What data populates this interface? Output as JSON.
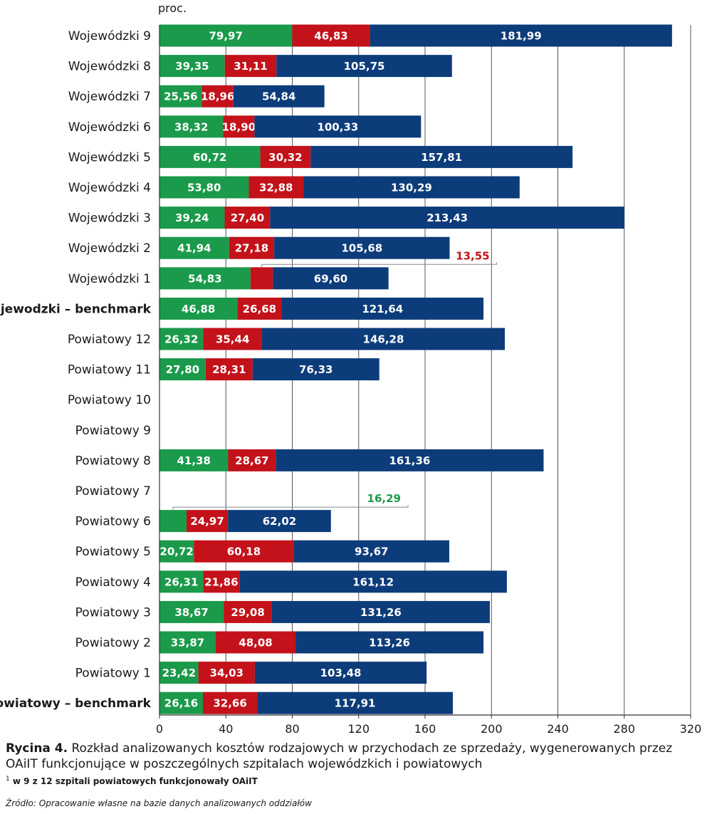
{
  "chart_data": {
    "type": "bar",
    "orientation": "horizontal",
    "stacked": true,
    "unit_label": "proc.",
    "xlim": [
      0,
      320
    ],
    "xticks": [
      0,
      40,
      80,
      120,
      160,
      200,
      240,
      280,
      320
    ],
    "xtick_labels": [
      "0",
      "40",
      "80",
      "120",
      "160",
      "200",
      "240",
      "280",
      "320"
    ],
    "grid": "vertical",
    "bold_categories": [
      "Wojewodzki – benchmark",
      "Powiatowy – benchmark"
    ],
    "categories": [
      "Wojewódzki 9",
      "Wojewódzki 8",
      "Wojewódzki 7",
      "Wojewódzki 6",
      "Wojewódzki 5",
      "Wojewódzki 4",
      "Wojewódzki 3",
      "Wojewódzki 2",
      "Wojewódzki 1",
      "Wojewodzki – benchmark",
      "Powiatowy 12",
      "Powiatowy 11",
      "Powiatowy 10",
      "Powiatowy 9",
      "Powiatowy 8",
      "Powiatowy 7",
      "Powiatowy 6",
      "Powiatowy 5",
      "Powiatowy 4",
      "Powiatowy 3",
      "Powiatowy 2",
      "Powiatowy 1",
      "Powiatowy – benchmark"
    ],
    "series": [
      {
        "color": "#1a9a4a",
        "values": [
          79.97,
          39.35,
          25.56,
          38.32,
          60.72,
          53.8,
          39.24,
          41.94,
          54.83,
          46.88,
          26.32,
          27.8,
          null,
          null,
          41.38,
          null,
          16.29,
          20.72,
          26.31,
          38.67,
          33.87,
          23.42,
          26.16
        ],
        "labels": [
          "79,97",
          "39,35",
          "25,56",
          "38,32",
          "60,72",
          "53,80",
          "39,24",
          "41,94",
          "54,83",
          "46,88",
          "26,32",
          "27,80",
          "",
          "",
          "41,38",
          "",
          "",
          "20,72",
          "26,31",
          "38,67",
          "33,87",
          "23,42",
          "26,16"
        ]
      },
      {
        "color": "#c3121a",
        "values": [
          46.83,
          31.11,
          18.96,
          18.9,
          30.32,
          32.88,
          27.4,
          27.18,
          13.55,
          26.68,
          35.44,
          28.31,
          null,
          null,
          28.67,
          null,
          24.97,
          60.18,
          21.86,
          29.08,
          48.08,
          34.03,
          32.66
        ],
        "labels": [
          "46,83",
          "31,11",
          "18,96",
          "18,90",
          "30,32",
          "32,88",
          "27,40",
          "27,18",
          "",
          "26,68",
          "35,44",
          "28,31",
          "",
          "",
          "28,67",
          "",
          "24,97",
          "60,18",
          "21,86",
          "29,08",
          "48,08",
          "34,03",
          "32,66"
        ]
      },
      {
        "color": "#0d3c7a",
        "values": [
          181.99,
          105.75,
          54.84,
          100.33,
          157.81,
          130.29,
          213.43,
          105.68,
          69.6,
          121.64,
          146.28,
          76.33,
          null,
          null,
          161.36,
          null,
          62.02,
          93.67,
          161.12,
          131.26,
          113.26,
          103.48,
          117.91
        ],
        "labels": [
          "181,99",
          "105,75",
          "54,84",
          "100,33",
          "157,81",
          "130,29",
          "213,43",
          "105,68",
          "69,60",
          "121,64",
          "146,28",
          "76,33",
          "",
          "",
          "161,36",
          "",
          "62,02",
          "93,67",
          "161,12",
          "131,26",
          "113,26",
          "103,48",
          "117,91"
        ]
      }
    ],
    "callouts": [
      {
        "category_index": 8,
        "series_index": 1,
        "text": "13,55",
        "color": "#c3121a"
      },
      {
        "category_index": 16,
        "series_index": 0,
        "text": "16,29",
        "color": "#1a9a4a"
      }
    ]
  },
  "caption": {
    "label": "Rycina 4.",
    "text": " Rozkład analizowanych kosztów rodzajowych w przychodach ze sprzedaży, wygenerowanych przez OAiIT funkcjonujące w poszczególnych szpitalach wojewódzkich i powiatowych"
  },
  "footnote": {
    "mark": "1",
    "text": " w 9 z 12 szpitali powiatowych funkcjonowały OAiIT"
  },
  "source": "Źródło: Opracowanie własne na bazie danych analizowanych oddziałów"
}
